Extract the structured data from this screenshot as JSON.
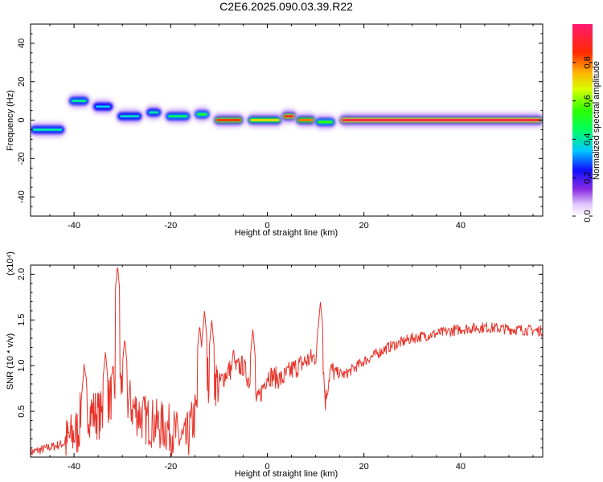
{
  "title": "C2E6.2025.090.03.39.R22",
  "chart_data": [
    {
      "type": "heatmap",
      "xlabel": "Height of straight line (km)",
      "ylabel": "Frequency (Hz)",
      "xlim": [
        -49,
        57
      ],
      "ylim": [
        -50,
        50
      ],
      "xticks": [
        -40,
        -20,
        0,
        20,
        40
      ],
      "yticks": [
        -40,
        -20,
        0,
        20,
        40
      ],
      "colorbar": {
        "label": "Normalized spectral amplitude",
        "range": [
          0,
          1
        ],
        "ticks": [
          "0.0",
          "0.2",
          "0.4",
          "0.6",
          "0.8"
        ],
        "tick_values": [
          0,
          0.2,
          0.4,
          0.6,
          0.8
        ]
      },
      "ridge_segments": [
        {
          "x0": -49,
          "x1": -42,
          "y": -5,
          "amp": 0.4
        },
        {
          "x0": -41,
          "x1": -37,
          "y": 10,
          "amp": 0.42
        },
        {
          "x0": -36,
          "x1": -32,
          "y": 7,
          "amp": 0.35
        },
        {
          "x0": -31,
          "x1": -26,
          "y": 2,
          "amp": 0.38
        },
        {
          "x0": -25,
          "x1": -22,
          "y": 4,
          "amp": 0.4
        },
        {
          "x0": -21,
          "x1": -16,
          "y": 2,
          "amp": 0.45
        },
        {
          "x0": -15,
          "x1": -12,
          "y": 3,
          "amp": 0.5
        },
        {
          "x0": -11,
          "x1": -5,
          "y": 0,
          "amp": 0.85
        },
        {
          "x0": -4,
          "x1": 3,
          "y": 0,
          "amp": 0.7
        },
        {
          "x0": 3,
          "x1": 6,
          "y": 2,
          "amp": 0.9
        },
        {
          "x0": 6,
          "x1": 10,
          "y": 0,
          "amp": 0.8
        },
        {
          "x0": 10,
          "x1": 14,
          "y": -1,
          "amp": 0.55
        },
        {
          "x0": 15,
          "x1": 57,
          "y": 0,
          "amp": 0.95
        }
      ]
    },
    {
      "type": "line",
      "xlabel": "Height of straight line (km)",
      "ylabel": "SNR (10 * v/v)",
      "multiplier": "(x10⁴)",
      "xlim": [
        -49,
        57
      ],
      "ylim": [
        0,
        2.1
      ],
      "xticks": [
        -40,
        -20,
        0,
        20,
        40
      ],
      "yticks": [
        0.5,
        1.0,
        1.5,
        2.0
      ],
      "ytick_labels": [
        "0.5",
        "1.0",
        "1.5",
        "2.0"
      ],
      "color": "#e8332a",
      "trend": [
        {
          "x": -49,
          "y": 0.05
        },
        {
          "x": -42,
          "y": 0.15
        },
        {
          "x": -39,
          "y": 0.3
        },
        {
          "x": -38,
          "y": 0.8
        },
        {
          "x": -37,
          "y": 0.5
        },
        {
          "x": -34,
          "y": 0.45
        },
        {
          "x": -31,
          "y": 0.85
        },
        {
          "x": -28,
          "y": 0.55
        },
        {
          "x": -25,
          "y": 0.4
        },
        {
          "x": -20,
          "y": 0.3
        },
        {
          "x": -17,
          "y": 0.15
        },
        {
          "x": -15,
          "y": 0.45
        },
        {
          "x": -12,
          "y": 0.9
        },
        {
          "x": -10,
          "y": 0.8
        },
        {
          "x": -8,
          "y": 0.95
        },
        {
          "x": -5,
          "y": 1.0
        },
        {
          "x": -2,
          "y": 0.6
        },
        {
          "x": 0,
          "y": 0.9
        },
        {
          "x": 3,
          "y": 0.85
        },
        {
          "x": 5,
          "y": 0.95
        },
        {
          "x": 8,
          "y": 1.05
        },
        {
          "x": 10,
          "y": 1.1
        },
        {
          "x": 11,
          "y": 1.55
        },
        {
          "x": 12,
          "y": 0.6
        },
        {
          "x": 13,
          "y": 0.95
        },
        {
          "x": 16,
          "y": 0.9
        },
        {
          "x": 20,
          "y": 1.05
        },
        {
          "x": 25,
          "y": 1.2
        },
        {
          "x": 30,
          "y": 1.3
        },
        {
          "x": 35,
          "y": 1.35
        },
        {
          "x": 40,
          "y": 1.4
        },
        {
          "x": 45,
          "y": 1.42
        },
        {
          "x": 50,
          "y": 1.4
        },
        {
          "x": 57,
          "y": 1.38
        }
      ],
      "peaks": [
        {
          "x": -38,
          "y": 0.93
        },
        {
          "x": -33.5,
          "y": 1.15
        },
        {
          "x": -31,
          "y": 2.1
        },
        {
          "x": -29.5,
          "y": 1.3
        },
        {
          "x": -14,
          "y": 1.45
        },
        {
          "x": -13,
          "y": 1.6
        },
        {
          "x": -11.5,
          "y": 1.5
        },
        {
          "x": -7,
          "y": 1.2
        },
        {
          "x": -3,
          "y": 1.4
        },
        {
          "x": 11,
          "y": 1.7
        }
      ]
    }
  ]
}
